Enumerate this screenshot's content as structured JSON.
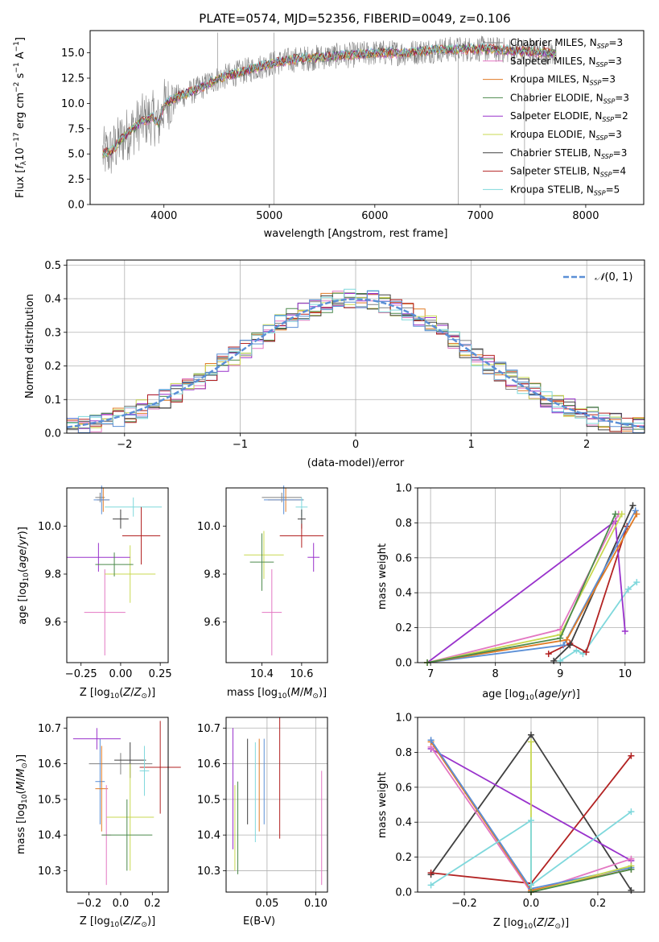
{
  "chart_data": [
    {
      "id": "spectrum",
      "type": "line",
      "title": "PLATE=0574, MJD=52356, FIBERID=0049, z=0.106",
      "xlabel": "wavelength [Angstrom, rest frame]",
      "ylabel": "Flux [f_λ 10^-17 erg cm^-2 s^-1 A^-1]",
      "xlim": [
        3300,
        8550
      ],
      "ylim": [
        0,
        17.2
      ],
      "xticks": [
        4000,
        5000,
        6000,
        7000,
        8000
      ],
      "yticks": [
        0.0,
        2.5,
        5.0,
        7.5,
        10.0,
        12.5,
        15.0
      ],
      "legend_position": "upper right",
      "legend": [
        {
          "label": "Chabrier MILES, N_SSP=3",
          "color": "#808080"
        },
        {
          "label": "Salpeter MILES, N_SSP=3",
          "color": "#e377c2"
        },
        {
          "label": "Kroupa MILES, N_SSP=3",
          "color": "#e07b26"
        },
        {
          "label": "Chabrier ELODIE, N_SSP=3",
          "color": "#4c8a4c"
        },
        {
          "label": "Salpeter ELODIE, N_SSP=2",
          "color": "#9932cc"
        },
        {
          "label": "Kroupa ELODIE, N_SSP=3",
          "color": "#c8d850"
        },
        {
          "label": "Chabrier STELIB, N_SSP=3",
          "color": "#404040"
        },
        {
          "label": "Salpeter STELIB, N_SSP=4",
          "color": "#b22222"
        },
        {
          "label": "Kroupa STELIB, N_SSP=5",
          "color": "#7fd8dc"
        }
      ],
      "continuum": [
        [
          3420,
          5.0
        ],
        [
          3500,
          5.2
        ],
        [
          3600,
          6.5
        ],
        [
          3700,
          7.4
        ],
        [
          3800,
          8.3
        ],
        [
          3900,
          8.6
        ],
        [
          3950,
          8.0
        ],
        [
          4000,
          9.8
        ],
        [
          4100,
          10.5
        ],
        [
          4300,
          11.3
        ],
        [
          4500,
          12.4
        ],
        [
          4800,
          13.3
        ],
        [
          5000,
          13.9
        ],
        [
          5200,
          14.3
        ],
        [
          5500,
          14.6
        ],
        [
          5800,
          14.8
        ],
        [
          6000,
          15.0
        ],
        [
          6300,
          15.0
        ],
        [
          6600,
          15.3
        ],
        [
          7000,
          15.4
        ],
        [
          7300,
          15.2
        ],
        [
          7500,
          15.1
        ],
        [
          7700,
          15.0
        ]
      ]
    },
    {
      "id": "residuals",
      "type": "histogram",
      "xlabel": "(data-model)/error",
      "ylabel": "Normed distribution",
      "xlim": [
        -2.5,
        2.5
      ],
      "ylim": [
        0,
        0.515
      ],
      "xticks": [
        -2,
        -1,
        0,
        1,
        2
      ],
      "yticks": [
        0.0,
        0.1,
        0.2,
        0.3,
        0.4,
        0.5
      ],
      "grid": true,
      "legend": [
        {
          "label": "N(0, 1)",
          "style": "dashed",
          "color": "#5b8fd6"
        }
      ]
    },
    {
      "id": "age-vs-Z",
      "type": "errorbar",
      "xlabel": "Z [log10(Z/Z⊙)]",
      "ylabel": "age  [log10(age/yr)]",
      "xlim": [
        -0.34,
        0.3
      ],
      "ylim": [
        9.43,
        10.16
      ],
      "xticks": [
        -0.25,
        0.0,
        0.25
      ],
      "yticks": [
        9.6,
        9.8,
        10.0
      ],
      "points": [
        {
          "x": -0.13,
          "y": 10.12,
          "xerr": 0.03,
          "yerr": 0.02,
          "color": "#808080"
        },
        {
          "x": -0.11,
          "y": 10.11,
          "xerr": 0.04,
          "yerr": 0.05,
          "color": "#e07b26"
        },
        {
          "x": -0.12,
          "y": 10.11,
          "xerr": 0.05,
          "yerr": 0.06,
          "color": "#5b8fd6"
        },
        {
          "x": 0.08,
          "y": 10.08,
          "xerr": 0.18,
          "yerr": 0.04,
          "color": "#7fd8dc"
        },
        {
          "x": -0.1,
          "y": 9.64,
          "xerr": 0.13,
          "yerr": 0.18,
          "color": "#e377c2"
        },
        {
          "x": 0.06,
          "y": 9.8,
          "xerr": 0.16,
          "yerr": 0.12,
          "color": "#c8d850"
        },
        {
          "x": 0.0,
          "y": 10.03,
          "xerr": 0.05,
          "yerr": 0.04,
          "color": "#404040"
        },
        {
          "x": 0.13,
          "y": 9.96,
          "xerr": 0.12,
          "yerr": 0.12,
          "color": "#b22222"
        },
        {
          "x": -0.14,
          "y": 9.87,
          "xerr": 0.2,
          "yerr": 0.06,
          "color": "#9932cc"
        },
        {
          "x": -0.04,
          "y": 9.84,
          "xerr": 0.12,
          "yerr": 0.05,
          "color": "#4c8a4c"
        }
      ]
    },
    {
      "id": "age-vs-mass",
      "type": "errorbar",
      "xlabel": "mass [log10(M/M⊙)]",
      "ylabel": "",
      "xlim": [
        10.22,
        10.73
      ],
      "ylim": [
        9.43,
        10.16
      ],
      "xticks": [
        10.4,
        10.6
      ],
      "yticks": [
        9.6,
        9.8,
        10.0
      ],
      "points": [
        {
          "x": 10.5,
          "y": 10.12,
          "xerr": 0.1,
          "yerr": 0.02,
          "color": "#808080"
        },
        {
          "x": 10.52,
          "y": 10.11,
          "xerr": 0.09,
          "yerr": 0.05,
          "color": "#e07b26"
        },
        {
          "x": 10.51,
          "y": 10.11,
          "xerr": 0.1,
          "yerr": 0.06,
          "color": "#5b8fd6"
        },
        {
          "x": 10.6,
          "y": 10.08,
          "xerr": 0.03,
          "yerr": 0.04,
          "color": "#7fd8dc"
        },
        {
          "x": 10.45,
          "y": 9.64,
          "xerr": 0.05,
          "yerr": 0.18,
          "color": "#e377c2"
        },
        {
          "x": 10.41,
          "y": 9.88,
          "xerr": 0.1,
          "yerr": 0.1,
          "color": "#c8d850"
        },
        {
          "x": 10.6,
          "y": 10.03,
          "xerr": 0.02,
          "yerr": 0.04,
          "color": "#404040"
        },
        {
          "x": 10.6,
          "y": 9.96,
          "xerr": 0.11,
          "yerr": 0.05,
          "color": "#b22222"
        },
        {
          "x": 10.66,
          "y": 9.87,
          "xerr": 0.03,
          "yerr": 0.06,
          "color": "#9932cc"
        },
        {
          "x": 10.4,
          "y": 9.85,
          "xerr": 0.06,
          "yerr": 0.12,
          "color": "#4c8a4c"
        }
      ]
    },
    {
      "id": "weight-vs-age",
      "type": "line",
      "xlabel": "age  [log10(age/yr)]",
      "ylabel": "mass weight",
      "xlim": [
        6.8,
        10.3
      ],
      "ylim": [
        0,
        1.0
      ],
      "xticks": [
        7,
        8,
        9,
        10
      ],
      "yticks": [
        0.0,
        0.2,
        0.4,
        0.6,
        0.8,
        1.0
      ],
      "grid": true,
      "series": [
        {
          "color": "#7fd8dc",
          "x": [
            9.0,
            9.25,
            9.35,
            10.05,
            10.18
          ],
          "y": [
            0.01,
            0.07,
            0.05,
            0.42,
            0.46
          ]
        },
        {
          "color": "#b22222",
          "x": [
            8.82,
            9.15,
            9.4,
            10.03
          ],
          "y": [
            0.05,
            0.11,
            0.06,
            0.78
          ]
        },
        {
          "color": "#404040",
          "x": [
            8.9,
            9.15,
            10.12
          ],
          "y": [
            0.01,
            0.1,
            0.9
          ]
        },
        {
          "color": "#9932cc",
          "x": [
            6.95,
            9.85,
            10.0
          ],
          "y": [
            0.0,
            0.81,
            0.18
          ]
        },
        {
          "color": "#e377c2",
          "x": [
            6.95,
            9.0,
            9.9
          ],
          "y": [
            0.0,
            0.19,
            0.85
          ]
        },
        {
          "color": "#5b8fd6",
          "x": [
            6.95,
            9.05,
            10.16
          ],
          "y": [
            0.0,
            0.1,
            0.87
          ]
        },
        {
          "color": "#e07b26",
          "x": [
            6.95,
            9.1,
            10.18
          ],
          "y": [
            0.0,
            0.13,
            0.85
          ]
        },
        {
          "color": "#c8d850",
          "x": [
            6.95,
            9.0,
            9.95
          ],
          "y": [
            0.0,
            0.16,
            0.85
          ]
        },
        {
          "color": "#4c8a4c",
          "x": [
            6.95,
            9.0,
            9.85
          ],
          "y": [
            0.0,
            0.14,
            0.85
          ]
        }
      ]
    },
    {
      "id": "mass-vs-Z",
      "type": "errorbar",
      "xlabel": "Z [log10(Z/Z⊙)]",
      "ylabel": "mass [log10(M/M⊙)]",
      "xlim": [
        -0.34,
        0.3
      ],
      "ylim": [
        10.24,
        10.73
      ],
      "xticks": [
        -0.2,
        0.0,
        0.2
      ],
      "yticks": [
        10.3,
        10.4,
        10.5,
        10.6,
        10.7
      ],
      "points": [
        {
          "x": 0.0,
          "y": 10.6,
          "xerr": 0.2,
          "yerr": 0.03,
          "color": "#808080"
        },
        {
          "x": -0.13,
          "y": 10.55,
          "xerr": 0.03,
          "yerr": 0.12,
          "color": "#5b8fd6"
        },
        {
          "x": -0.12,
          "y": 10.53,
          "xerr": 0.04,
          "yerr": 0.12,
          "color": "#e07b26"
        },
        {
          "x": -0.09,
          "y": 10.4,
          "xerr": 0.03,
          "yerr": 0.14,
          "color": "#e377c2"
        },
        {
          "x": -0.15,
          "y": 10.67,
          "xerr": 0.15,
          "yerr": 0.03,
          "color": "#9932cc"
        },
        {
          "x": 0.06,
          "y": 10.61,
          "xerr": 0.1,
          "yerr": 0.05,
          "color": "#404040"
        },
        {
          "x": 0.06,
          "y": 10.45,
          "xerr": 0.15,
          "yerr": 0.15,
          "color": "#c8d850"
        },
        {
          "x": 0.25,
          "y": 10.59,
          "xerr": 0.13,
          "yerr": 0.13,
          "color": "#b22222"
        },
        {
          "x": 0.04,
          "y": 10.4,
          "xerr": 0.16,
          "yerr": 0.1,
          "color": "#4c8a4c"
        },
        {
          "x": 0.15,
          "y": 10.58,
          "xerr": 0.03,
          "yerr": 0.07,
          "color": "#7fd8dc"
        }
      ]
    },
    {
      "id": "mass-vs-ebv",
      "type": "errorbar",
      "xlabel": "E(B-V)",
      "ylabel": "",
      "xlim": [
        0.008,
        0.112
      ],
      "ylim": [
        10.24,
        10.73
      ],
      "xticks": [
        0.05,
        0.1
      ],
      "yticks": [
        10.3,
        10.4,
        10.5,
        10.6,
        10.7
      ],
      "grid": true,
      "points": [
        {
          "x": 0.015,
          "y": 10.53,
          "yerr": 0.17,
          "color": "#9932cc"
        },
        {
          "x": 0.017,
          "y": 10.42,
          "yerr": 0.12,
          "color": "#c8d850"
        },
        {
          "x": 0.02,
          "y": 10.42,
          "yerr": 0.13,
          "color": "#4c8a4c"
        },
        {
          "x": 0.03,
          "y": 10.55,
          "yerr": 0.12,
          "color": "#404040"
        },
        {
          "x": 0.038,
          "y": 10.52,
          "yerr": 0.14,
          "color": "#7fd8dc"
        },
        {
          "x": 0.042,
          "y": 10.54,
          "yerr": 0.13,
          "color": "#e07b26"
        },
        {
          "x": 0.047,
          "y": 10.55,
          "yerr": 0.12,
          "color": "#5b8fd6"
        },
        {
          "x": 0.063,
          "y": 10.56,
          "yerr": 0.17,
          "color": "#b22222"
        },
        {
          "x": 0.106,
          "y": 10.42,
          "yerr": 0.16,
          "color": "#e377c2"
        }
      ]
    },
    {
      "id": "weight-vs-Z",
      "type": "line",
      "xlabel": "Z [log10(Z/Z⊙)]",
      "ylabel": "mass weight",
      "xlim": [
        -0.34,
        0.34
      ],
      "ylim": [
        0,
        1.0
      ],
      "xticks": [
        -0.2,
        0.0,
        0.2
      ],
      "yticks": [
        0.0,
        0.2,
        0.4,
        0.6,
        0.8,
        1.0
      ],
      "grid": true,
      "series": [
        {
          "color": "#404040",
          "x": [
            -0.3,
            0.0,
            0.3
          ],
          "y": [
            0.1,
            0.9,
            0.01
          ]
        },
        {
          "color": "#b22222",
          "x": [
            -0.3,
            0.0,
            0.3
          ],
          "y": [
            0.11,
            0.05,
            0.78
          ]
        },
        {
          "color": "#9932cc",
          "x": [
            -0.3,
            0.3
          ],
          "y": [
            0.82,
            0.18
          ]
        },
        {
          "color": "#e377c2",
          "x": [
            -0.3,
            0.0,
            0.3
          ],
          "y": [
            0.83,
            0.0,
            0.19
          ]
        },
        {
          "color": "#e07b26",
          "x": [
            -0.3,
            0.0,
            0.3
          ],
          "y": [
            0.86,
            0.01,
            0.13
          ]
        },
        {
          "color": "#5b8fd6",
          "x": [
            -0.3,
            0.0,
            0.3
          ],
          "y": [
            0.87,
            0.02,
            0.14
          ]
        },
        {
          "color": "#c8d850",
          "x": [
            0.0,
            0.0,
            0.3
          ],
          "y": [
            0.86,
            0.0,
            0.15
          ]
        },
        {
          "color": "#4c8a4c",
          "x": [
            0.0,
            0.3
          ],
          "y": [
            0.0,
            0.13
          ]
        },
        {
          "color": "#7fd8dc",
          "x": [
            -0.3,
            0.0,
            0.0,
            0.3
          ],
          "y": [
            0.04,
            0.41,
            0.04,
            0.46
          ]
        }
      ]
    }
  ]
}
